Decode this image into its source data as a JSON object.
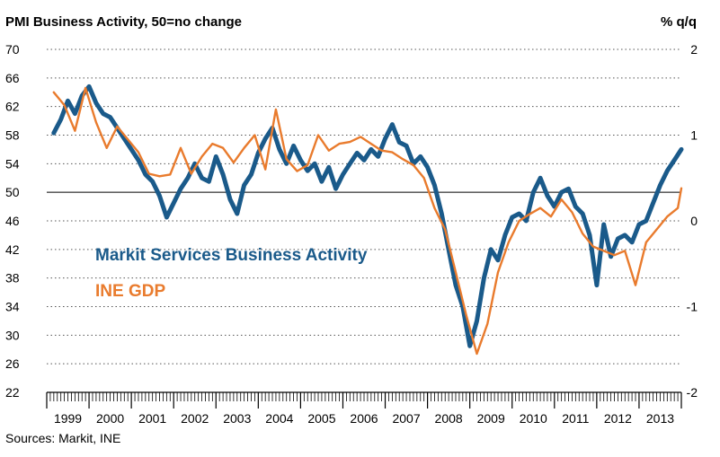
{
  "chart_data": {
    "type": "line",
    "title": "PMI Business Activity, 50=no change",
    "ylabel_right": "% q/q",
    "source": "Sources: Markit, INE",
    "x_start": "1999-01",
    "x_end": "2014-01",
    "left_axis": {
      "ylim": [
        22,
        70
      ],
      "ticks": [
        22,
        26,
        30,
        34,
        38,
        42,
        46,
        50,
        54,
        58,
        62,
        66,
        70
      ],
      "reference_line": 50
    },
    "right_axis": {
      "ylim": [
        -2,
        2
      ],
      "ticks": [
        -2,
        -1,
        0,
        1,
        2
      ]
    },
    "x_tick_labels": [
      "1999",
      "2000",
      "2001",
      "2002",
      "2003",
      "2004",
      "2005",
      "2006",
      "2007",
      "2008",
      "2009",
      "2010",
      "2011",
      "2012",
      "2013"
    ],
    "grid": "horizontal dotted",
    "colors": {
      "pmi": "#1a5a8a",
      "gdp": "#e97b2d",
      "reference": "#000000",
      "grid": "#555555"
    },
    "series": [
      {
        "name": "Markit Services Business Activity",
        "axis": "left",
        "points": [
          [
            "1999-03",
            58.3
          ],
          [
            "1999-05",
            60.2
          ],
          [
            "1999-07",
            62.8
          ],
          [
            "1999-09",
            61.0
          ],
          [
            "1999-11",
            63.5
          ],
          [
            "2000-01",
            64.8
          ],
          [
            "2000-03",
            62.5
          ],
          [
            "2000-05",
            61.0
          ],
          [
            "2000-07",
            60.5
          ],
          [
            "2000-09",
            59.0
          ],
          [
            "2000-11",
            57.5
          ],
          [
            "2001-01",
            56.0
          ],
          [
            "2001-03",
            54.5
          ],
          [
            "2001-05",
            52.5
          ],
          [
            "2001-07",
            51.5
          ],
          [
            "2001-09",
            49.5
          ],
          [
            "2001-11",
            46.5
          ],
          [
            "2002-01",
            48.5
          ],
          [
            "2002-03",
            50.5
          ],
          [
            "2002-05",
            52.0
          ],
          [
            "2002-07",
            54.0
          ],
          [
            "2002-09",
            52.0
          ],
          [
            "2002-11",
            51.5
          ],
          [
            "2003-01",
            55.0
          ],
          [
            "2003-03",
            52.5
          ],
          [
            "2003-05",
            49.0
          ],
          [
            "2003-07",
            47.0
          ],
          [
            "2003-09",
            51.0
          ],
          [
            "2003-11",
            52.5
          ],
          [
            "2004-01",
            55.5
          ],
          [
            "2004-03",
            57.5
          ],
          [
            "2004-05",
            59.0
          ],
          [
            "2004-07",
            56.0
          ],
          [
            "2004-09",
            54.0
          ],
          [
            "2004-11",
            56.5
          ],
          [
            "2005-01",
            54.5
          ],
          [
            "2005-03",
            53.0
          ],
          [
            "2005-05",
            54.0
          ],
          [
            "2005-07",
            51.5
          ],
          [
            "2005-09",
            53.5
          ],
          [
            "2005-11",
            50.5
          ],
          [
            "2006-01",
            52.5
          ],
          [
            "2006-03",
            54.0
          ],
          [
            "2006-05",
            55.5
          ],
          [
            "2006-07",
            54.5
          ],
          [
            "2006-09",
            56.0
          ],
          [
            "2006-11",
            55.0
          ],
          [
            "2007-01",
            57.5
          ],
          [
            "2007-03",
            59.5
          ],
          [
            "2007-05",
            57.0
          ],
          [
            "2007-07",
            56.5
          ],
          [
            "2007-09",
            54.0
          ],
          [
            "2007-11",
            55.0
          ],
          [
            "2008-01",
            53.5
          ],
          [
            "2008-03",
            51.0
          ],
          [
            "2008-05",
            47.0
          ],
          [
            "2008-07",
            42.0
          ],
          [
            "2008-09",
            37.0
          ],
          [
            "2008-11",
            34.0
          ],
          [
            "2009-01",
            28.5
          ],
          [
            "2009-03",
            32.0
          ],
          [
            "2009-05",
            38.0
          ],
          [
            "2009-07",
            42.0
          ],
          [
            "2009-09",
            40.5
          ],
          [
            "2009-11",
            44.0
          ],
          [
            "2010-01",
            46.5
          ],
          [
            "2010-03",
            47.0
          ],
          [
            "2010-05",
            46.0
          ],
          [
            "2010-07",
            50.0
          ],
          [
            "2010-09",
            52.0
          ],
          [
            "2010-11",
            49.5
          ],
          [
            "2011-01",
            48.0
          ],
          [
            "2011-03",
            50.0
          ],
          [
            "2011-05",
            50.5
          ],
          [
            "2011-07",
            48.0
          ],
          [
            "2011-09",
            47.0
          ],
          [
            "2011-11",
            44.0
          ],
          [
            "2012-01",
            37.0
          ],
          [
            "2012-03",
            45.5
          ],
          [
            "2012-05",
            41.0
          ],
          [
            "2012-07",
            43.5
          ],
          [
            "2012-09",
            44.0
          ],
          [
            "2012-11",
            43.0
          ],
          [
            "2013-01",
            45.5
          ],
          [
            "2013-03",
            46.0
          ],
          [
            "2013-05",
            48.5
          ],
          [
            "2013-07",
            51.0
          ],
          [
            "2013-09",
            53.0
          ],
          [
            "2013-11",
            54.5
          ],
          [
            "2014-01",
            56.0
          ]
        ]
      },
      {
        "name": "INE GDP",
        "axis": "right",
        "points": [
          [
            "1999-03",
            1.5
          ],
          [
            "1999-06",
            1.35
          ],
          [
            "1999-09",
            1.05
          ],
          [
            "1999-12",
            1.55
          ],
          [
            "2000-03",
            1.15
          ],
          [
            "2000-06",
            0.85
          ],
          [
            "2000-09",
            1.1
          ],
          [
            "2000-12",
            0.95
          ],
          [
            "2001-03",
            0.8
          ],
          [
            "2001-06",
            0.55
          ],
          [
            "2001-09",
            0.52
          ],
          [
            "2001-12",
            0.54
          ],
          [
            "2002-03",
            0.85
          ],
          [
            "2002-06",
            0.55
          ],
          [
            "2002-09",
            0.75
          ],
          [
            "2002-12",
            0.9
          ],
          [
            "2003-03",
            0.85
          ],
          [
            "2003-06",
            0.68
          ],
          [
            "2003-09",
            0.85
          ],
          [
            "2003-12",
            1.0
          ],
          [
            "2004-03",
            0.6
          ],
          [
            "2004-06",
            1.3
          ],
          [
            "2004-09",
            0.72
          ],
          [
            "2004-12",
            0.58
          ],
          [
            "2005-03",
            0.65
          ],
          [
            "2005-06",
            1.0
          ],
          [
            "2005-09",
            0.82
          ],
          [
            "2005-12",
            0.9
          ],
          [
            "2006-03",
            0.92
          ],
          [
            "2006-06",
            0.98
          ],
          [
            "2006-09",
            0.9
          ],
          [
            "2006-12",
            0.82
          ],
          [
            "2007-03",
            0.8
          ],
          [
            "2007-06",
            0.72
          ],
          [
            "2007-09",
            0.65
          ],
          [
            "2007-12",
            0.5
          ],
          [
            "2008-03",
            0.15
          ],
          [
            "2008-06",
            -0.1
          ],
          [
            "2008-09",
            -0.6
          ],
          [
            "2008-12",
            -1.1
          ],
          [
            "2009-03",
            -1.55
          ],
          [
            "2009-06",
            -1.2
          ],
          [
            "2009-09",
            -0.6
          ],
          [
            "2009-12",
            -0.25
          ],
          [
            "2010-03",
            0.0
          ],
          [
            "2010-06",
            0.08
          ],
          [
            "2010-09",
            0.15
          ],
          [
            "2010-12",
            0.05
          ],
          [
            "2011-03",
            0.25
          ],
          [
            "2011-06",
            0.1
          ],
          [
            "2011-09",
            -0.15
          ],
          [
            "2011-12",
            -0.3
          ],
          [
            "2012-03",
            -0.35
          ],
          [
            "2012-06",
            -0.4
          ],
          [
            "2012-09",
            -0.35
          ],
          [
            "2012-12",
            -0.75
          ],
          [
            "2013-03",
            -0.25
          ],
          [
            "2013-06",
            -0.1
          ],
          [
            "2013-09",
            0.05
          ],
          [
            "2013-12",
            0.15
          ],
          [
            "2014-01",
            0.38
          ]
        ]
      }
    ]
  }
}
